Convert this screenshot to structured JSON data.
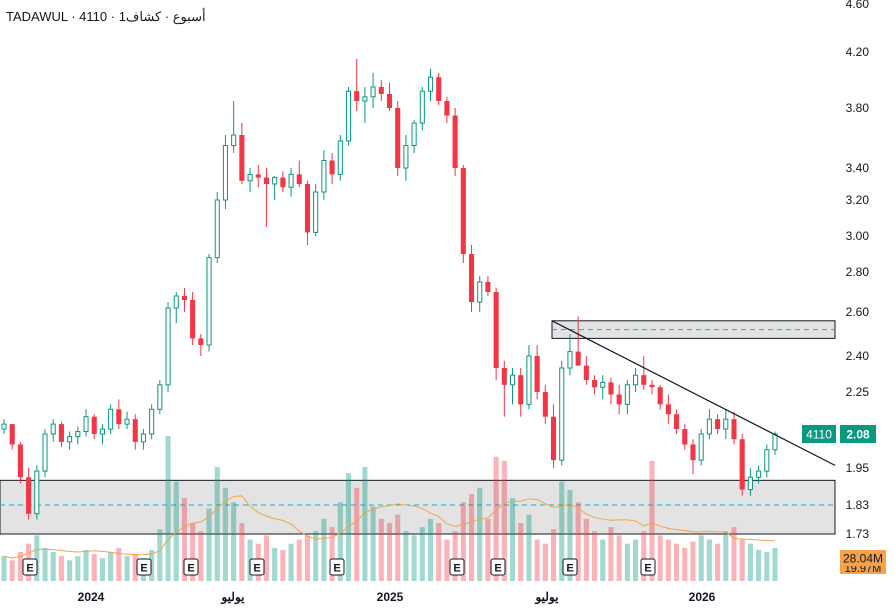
{
  "header": {
    "symbol_line": "TADAWUL · 4110 · 1أسبوع · كشاف"
  },
  "chart_data": {
    "type": "candlestick",
    "title": "",
    "y_ticks": [
      "4.60",
      "4.20",
      "3.80",
      "3.40",
      "3.20",
      "3.00",
      "2.80",
      "2.60",
      "2.40",
      "2.25",
      "1.95",
      "1.83",
      "1.73"
    ],
    "x_ticks": [
      "2024",
      "يوليو",
      "2025",
      "يوليو",
      "2026"
    ],
    "price_badge": {
      "symbol": "4110",
      "value": "2.08",
      "color": "#089981"
    },
    "volume_badges": [
      "28.04M",
      "19.97M"
    ],
    "volume_badge_color": "#f5a34a",
    "earnings_marker_label": "E",
    "up_color": "#089981",
    "down_color": "#f23645",
    "candles_approx": [
      [
        2.1,
        2.14,
        2.08,
        2.12
      ],
      [
        2.12,
        2.12,
        2.02,
        2.04
      ],
      [
        2.04,
        2.05,
        1.9,
        1.92
      ],
      [
        1.92,
        1.95,
        1.78,
        1.8
      ],
      [
        1.8,
        1.96,
        1.78,
        1.94
      ],
      [
        1.94,
        2.1,
        1.92,
        2.08
      ],
      [
        2.08,
        2.14,
        2.05,
        2.12
      ],
      [
        2.12,
        2.13,
        2.03,
        2.05
      ],
      [
        2.05,
        2.09,
        2.02,
        2.07
      ],
      [
        2.07,
        2.11,
        2.04,
        2.09
      ],
      [
        2.09,
        2.18,
        2.07,
        2.15
      ],
      [
        2.15,
        2.16,
        2.06,
        2.08
      ],
      [
        2.08,
        2.12,
        2.04,
        2.1
      ],
      [
        2.1,
        2.2,
        2.08,
        2.18
      ],
      [
        2.18,
        2.22,
        2.1,
        2.12
      ],
      [
        2.12,
        2.17,
        2.1,
        2.14
      ],
      [
        2.14,
        2.16,
        2.02,
        2.05
      ],
      [
        2.05,
        2.1,
        2.02,
        2.08
      ],
      [
        2.08,
        2.2,
        2.06,
        2.18
      ],
      [
        2.18,
        2.3,
        2.16,
        2.28
      ],
      [
        2.28,
        2.65,
        2.25,
        2.62
      ],
      [
        2.62,
        2.7,
        2.55,
        2.68
      ],
      [
        2.68,
        2.72,
        2.6,
        2.66
      ],
      [
        2.66,
        2.7,
        2.45,
        2.48
      ],
      [
        2.48,
        2.5,
        2.4,
        2.45
      ],
      [
        2.45,
        2.9,
        2.42,
        2.88
      ],
      [
        2.88,
        3.25,
        2.85,
        3.2
      ],
      [
        3.2,
        3.62,
        3.15,
        3.55
      ],
      [
        3.55,
        3.85,
        3.5,
        3.62
      ],
      [
        3.62,
        3.7,
        3.3,
        3.32
      ],
      [
        3.32,
        3.4,
        3.25,
        3.36
      ],
      [
        3.36,
        3.42,
        3.28,
        3.34
      ],
      [
        3.34,
        3.4,
        3.05,
        3.3
      ],
      [
        3.3,
        3.35,
        3.2,
        3.34
      ],
      [
        3.34,
        3.38,
        3.25,
        3.28
      ],
      [
        3.28,
        3.4,
        3.22,
        3.36
      ],
      [
        3.36,
        3.45,
        3.28,
        3.3
      ],
      [
        3.3,
        3.32,
        2.95,
        3.02
      ],
      [
        3.02,
        3.3,
        3.0,
        3.25
      ],
      [
        3.25,
        3.52,
        3.2,
        3.45
      ],
      [
        3.45,
        3.5,
        3.3,
        3.36
      ],
      [
        3.36,
        3.62,
        3.32,
        3.58
      ],
      [
        3.58,
        3.95,
        3.55,
        3.92
      ],
      [
        3.92,
        4.15,
        3.78,
        3.85
      ],
      [
        3.85,
        3.95,
        3.7,
        3.88
      ],
      [
        3.88,
        4.05,
        3.8,
        3.95
      ],
      [
        3.95,
        4.0,
        3.85,
        3.9
      ],
      [
        3.9,
        3.98,
        3.78,
        3.8
      ],
      [
        3.8,
        3.85,
        3.35,
        3.4
      ],
      [
        3.4,
        3.62,
        3.32,
        3.55
      ],
      [
        3.55,
        3.72,
        3.5,
        3.7
      ],
      [
        3.7,
        3.95,
        3.65,
        3.92
      ],
      [
        3.92,
        4.08,
        3.85,
        4.02
      ],
      [
        4.02,
        4.05,
        3.82,
        3.85
      ],
      [
        3.85,
        3.88,
        3.7,
        3.75
      ],
      [
        3.75,
        3.8,
        3.35,
        3.4
      ],
      [
        3.4,
        3.42,
        2.85,
        2.9
      ],
      [
        2.9,
        2.95,
        2.6,
        2.65
      ],
      [
        2.65,
        2.78,
        2.6,
        2.75
      ],
      [
        2.75,
        2.78,
        2.68,
        2.7
      ],
      [
        2.7,
        2.72,
        2.3,
        2.35
      ],
      [
        2.35,
        2.38,
        2.15,
        2.28
      ],
      [
        2.28,
        2.35,
        2.2,
        2.32
      ],
      [
        2.32,
        2.35,
        2.15,
        2.2
      ],
      [
        2.2,
        2.45,
        2.18,
        2.4
      ],
      [
        2.4,
        2.45,
        2.22,
        2.25
      ],
      [
        2.25,
        2.28,
        2.12,
        2.15
      ],
      [
        2.15,
        2.2,
        1.95,
        1.98
      ],
      [
        1.98,
        2.38,
        1.96,
        2.35
      ],
      [
        2.35,
        2.5,
        2.32,
        2.42
      ],
      [
        2.42,
        2.58,
        2.38,
        2.36
      ],
      [
        2.36,
        2.4,
        2.28,
        2.3
      ],
      [
        2.3,
        2.32,
        2.24,
        2.27
      ],
      [
        2.27,
        2.32,
        2.22,
        2.29
      ],
      [
        2.29,
        2.31,
        2.2,
        2.24
      ],
      [
        2.24,
        2.28,
        2.16,
        2.2
      ],
      [
        2.2,
        2.3,
        2.16,
        2.28
      ],
      [
        2.28,
        2.35,
        2.25,
        2.32
      ],
      [
        2.32,
        2.4,
        2.26,
        2.28
      ],
      [
        2.28,
        2.3,
        2.24,
        2.27
      ],
      [
        2.27,
        2.28,
        2.18,
        2.2
      ],
      [
        2.2,
        2.24,
        2.12,
        2.16
      ],
      [
        2.16,
        2.18,
        2.08,
        2.1
      ],
      [
        2.1,
        2.12,
        2.02,
        2.04
      ],
      [
        2.04,
        2.06,
        1.93,
        1.98
      ],
      [
        1.98,
        2.1,
        1.96,
        2.08
      ],
      [
        2.08,
        2.18,
        2.06,
        2.14
      ],
      [
        2.14,
        2.16,
        2.08,
        2.1
      ],
      [
        2.1,
        2.18,
        2.06,
        2.14
      ],
      [
        2.14,
        2.17,
        2.04,
        2.06
      ],
      [
        2.06,
        2.08,
        1.86,
        1.88
      ],
      [
        1.88,
        1.95,
        1.86,
        1.92
      ],
      [
        1.92,
        1.96,
        1.9,
        1.94
      ],
      [
        1.94,
        2.04,
        1.92,
        2.02
      ],
      [
        2.02,
        2.09,
        2.0,
        2.08
      ]
    ],
    "volume_approx": [
      12,
      10,
      14,
      18,
      22,
      16,
      14,
      12,
      10,
      12,
      15,
      13,
      11,
      14,
      16,
      12,
      13,
      11,
      15,
      25,
      70,
      48,
      40,
      28,
      24,
      35,
      55,
      45,
      38,
      28,
      20,
      18,
      22,
      16,
      15,
      18,
      20,
      22,
      24,
      30,
      26,
      38,
      52,
      45,
      55,
      36,
      30,
      28,
      32,
      24,
      22,
      26,
      30,
      28,
      20,
      24,
      38,
      42,
      45,
      30,
      60,
      58,
      40,
      28,
      32,
      20,
      18,
      25,
      48,
      44,
      38,
      30,
      24,
      20,
      26,
      22,
      18,
      20,
      24,
      58,
      22,
      20,
      18,
      16,
      19,
      22,
      20,
      18,
      24,
      26,
      20,
      18,
      15,
      14,
      16
    ],
    "support_zone": {
      "top": 1.91,
      "bottom": 1.73,
      "mid": 1.83
    },
    "resistance_zone": {
      "top": 2.56,
      "bottom": 2.48,
      "mid": 2.52
    },
    "trendline": {
      "from": 2.56,
      "to": 1.96
    }
  }
}
